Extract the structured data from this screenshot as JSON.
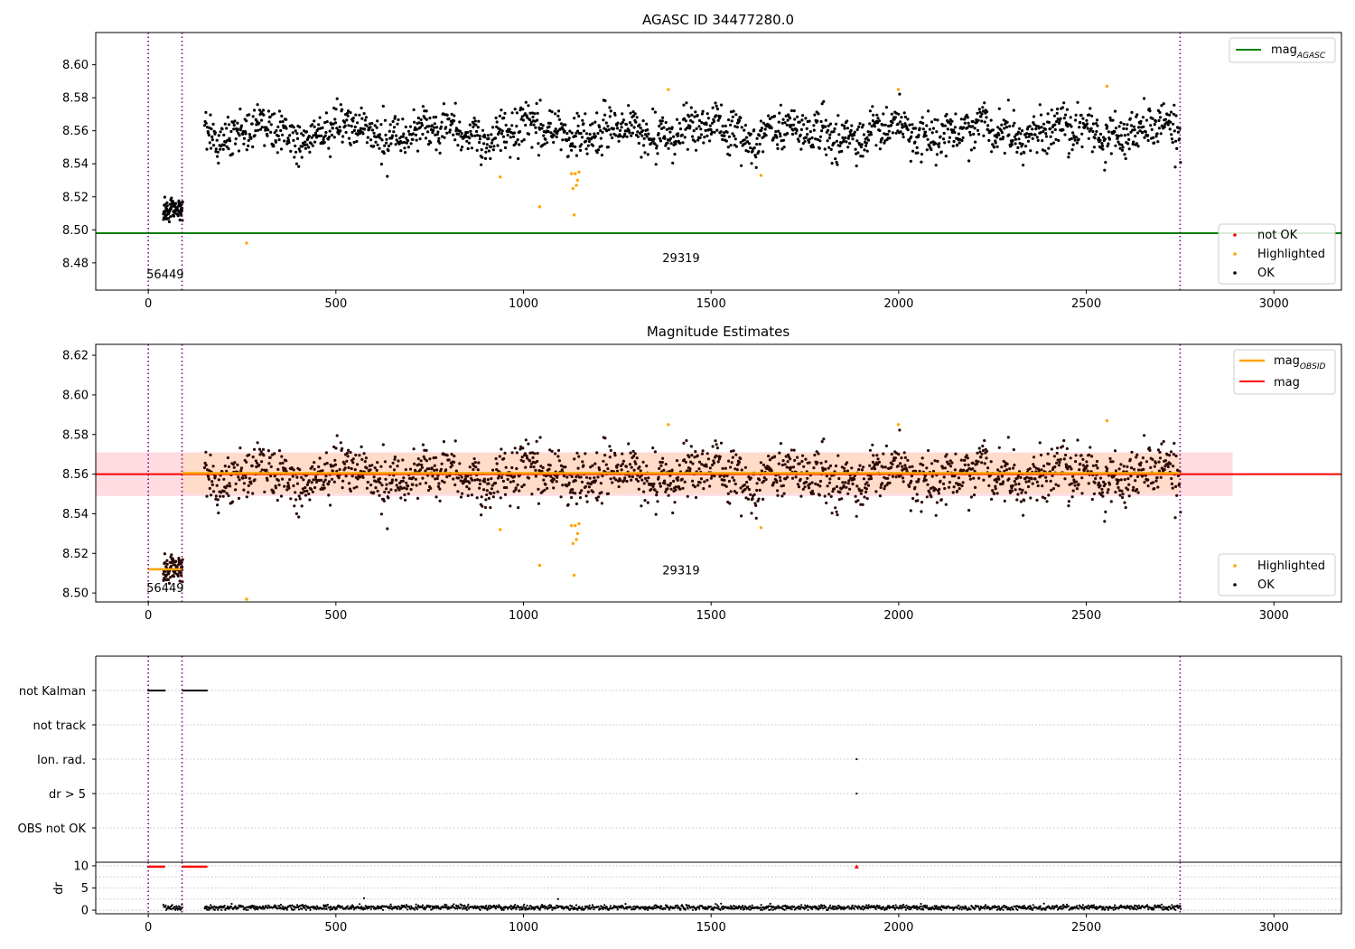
{
  "figure": {
    "obsid_labels": [
      "56449",
      "29319"
    ],
    "tick_colors": {
      "axis": "#000000",
      "grid": "#b0b0b0"
    }
  },
  "colors": {
    "ok": "#000000",
    "highlighted": "#ffa500",
    "not_ok": "#ff0000",
    "mag_agasc": "#008000",
    "mag": "#ff0000",
    "mag_obsid": "#ffa500",
    "band_global": "#ffc0cb",
    "band_obsid": "#ffdab9",
    "obs_boundary": "#800080"
  },
  "chart_data": [
    {
      "id": "panel1",
      "type": "scatter",
      "title": "AGASC ID 34477280.0",
      "xlabel": "",
      "ylabel": "",
      "xlim": [
        -140,
        3180
      ],
      "ylim": [
        8.4635,
        8.6195
      ],
      "x_ticks": [
        0,
        500,
        1000,
        1500,
        2000,
        2500,
        3000
      ],
      "y_ticks": [
        "8.48",
        "8.50",
        "8.52",
        "8.54",
        "8.56",
        "8.58",
        "8.60"
      ],
      "grid": false,
      "obs_boundaries": [
        0,
        90,
        2750
      ],
      "obsid_annotations": [
        {
          "text": "56449",
          "x": 45,
          "y": 8.4705
        },
        {
          "text": "29319",
          "x": 1420,
          "y": 8.4805
        }
      ],
      "hlines": [
        {
          "name": "mag_AGASC",
          "y": 8.498,
          "color": "mag_agasc"
        }
      ],
      "legend_lines": {
        "position": "upper right",
        "entries": [
          {
            "main": "mag",
            "sub": "AGASC",
            "color": "mag_agasc"
          }
        ]
      },
      "legend_points": {
        "position": "lower right",
        "entries": [
          {
            "label": "not OK",
            "color": "not_ok"
          },
          {
            "label": "Highlighted",
            "color": "highlighted"
          },
          {
            "label": "OK",
            "color": "ok"
          }
        ]
      },
      "segments": [
        {
          "x0": 40,
          "x1": 92,
          "mean": 8.5125,
          "sd": 0.004,
          "n": 85
        },
        {
          "x0": 150,
          "x1": 2752,
          "mean": 8.5595,
          "sd": 0.0075,
          "n": 1850
        }
      ],
      "highlighted": [
        {
          "x": 262,
          "y": 8.492
        },
        {
          "x": 938,
          "y": 8.532
        },
        {
          "x": 1043,
          "y": 8.514
        },
        {
          "x": 1128,
          "y": 8.534
        },
        {
          "x": 1132,
          "y": 8.525
        },
        {
          "x": 1135,
          "y": 8.509
        },
        {
          "x": 1138,
          "y": 8.534
        },
        {
          "x": 1141,
          "y": 8.527
        },
        {
          "x": 1144,
          "y": 8.53
        },
        {
          "x": 1148,
          "y": 8.535
        },
        {
          "x": 1386,
          "y": 8.585
        },
        {
          "x": 1633,
          "y": 8.533
        },
        {
          "x": 1999,
          "y": 8.585
        },
        {
          "x": 2555,
          "y": 8.587
        }
      ]
    },
    {
      "id": "panel2",
      "type": "scatter",
      "title": "Magnitude Estimates",
      "xlabel": "",
      "ylabel": "",
      "xlim": [
        -140,
        3180
      ],
      "ylim": [
        8.4955,
        8.6255
      ],
      "x_ticks": [
        0,
        500,
        1000,
        1500,
        2000,
        2500,
        3000
      ],
      "y_ticks": [
        "8.50",
        "8.52",
        "8.54",
        "8.56",
        "8.58",
        "8.60",
        "8.62"
      ],
      "grid": false,
      "obs_boundaries": [
        0,
        90,
        2750
      ],
      "obsid_annotations": [
        {
          "text": "56449",
          "x": 45,
          "y": 8.5005
        },
        {
          "text": "29319",
          "x": 1420,
          "y": 8.5095
        }
      ],
      "global_band": {
        "x0": -140,
        "x1": 2890,
        "y0": 8.549,
        "y1": 8.571
      },
      "obsid_bands": [
        {
          "x0": 90,
          "x1": 2750,
          "y0": 8.5505,
          "y1": 8.5705
        }
      ],
      "mag_line": {
        "y": 8.56
      },
      "mag_obsid_segments": [
        {
          "x0": 0,
          "x1": 90,
          "y": 8.512
        },
        {
          "x0": 90,
          "x1": 2750,
          "y": 8.5605
        }
      ],
      "legend_lines": {
        "position": "upper right",
        "entries": [
          {
            "main": "mag",
            "sub": "OBSID",
            "color": "mag_obsid"
          },
          {
            "main": "mag",
            "sub": "",
            "color": "mag"
          }
        ]
      },
      "legend_points": {
        "position": "lower right",
        "entries": [
          {
            "label": "Highlighted",
            "color": "highlighted"
          },
          {
            "label": "OK",
            "color": "ok"
          }
        ]
      }
    },
    {
      "id": "panel3",
      "type": "scatter",
      "title": "",
      "xlim": [
        -140,
        3180
      ],
      "x_ticks": [
        0,
        500,
        1000,
        1500,
        2000,
        2500,
        3000
      ],
      "flag_rows": [
        "not Kalman",
        "not track",
        "Ion. rad.",
        "dr > 5",
        "OBS not OK"
      ],
      "flag_points": [
        {
          "row": "not Kalman",
          "x0": 0,
          "x1": 45
        },
        {
          "row": "not Kalman",
          "x0": 92,
          "x1": 158
        },
        {
          "row": "Ion. rad.",
          "x0": 1888,
          "x1": 1888
        },
        {
          "row": "dr > 5",
          "x0": 1888,
          "x1": 1888
        }
      ],
      "dr_ylabel": "dr",
      "dr_yticks": [
        "0",
        "5",
        "10"
      ],
      "dr_ylim": [
        -0.8,
        10.8
      ],
      "dr_capped": [
        {
          "x0": 0,
          "x1": 45,
          "y": 9.8
        },
        {
          "x0": 92,
          "x1": 158,
          "y": 9.8
        },
        {
          "x0": 1888,
          "x1": 1888,
          "y": 9.8
        }
      ],
      "dr_points_range": {
        "x0": 40,
        "x1": 2752,
        "typical": 0.6
      },
      "dr_outliers": [
        {
          "x": 575,
          "y": 2.7
        },
        {
          "x": 1092,
          "y": 2.5
        }
      ]
    }
  ]
}
